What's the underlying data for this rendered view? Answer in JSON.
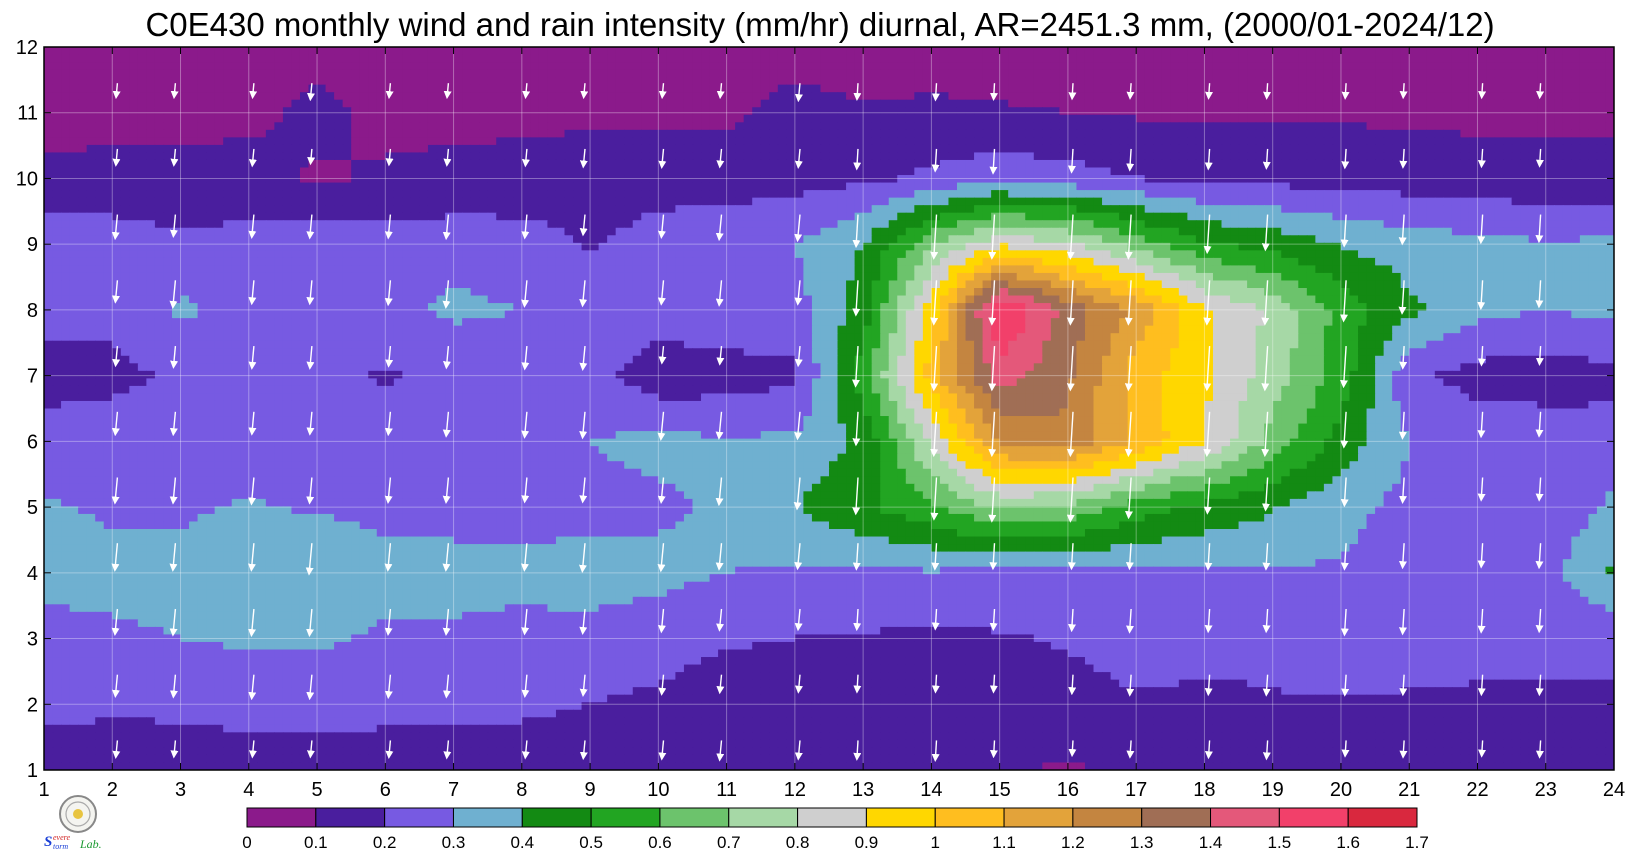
{
  "chart_data": {
    "type": "heatmap",
    "title": "C0E430 monthly wind and rain intensity (mm/hr) diurnal, AR=2451.3 mm, (2000/01-2024/12)",
    "xlabel": "",
    "ylabel": "",
    "x": [
      1,
      2,
      3,
      4,
      5,
      6,
      7,
      8,
      9,
      10,
      11,
      12,
      13,
      14,
      15,
      16,
      17,
      18,
      19,
      20,
      21,
      22,
      23,
      24
    ],
    "y": [
      1,
      2,
      3,
      4,
      5,
      6,
      7,
      8,
      9,
      10,
      11,
      12
    ],
    "xlim": [
      1,
      24
    ],
    "ylim": [
      1,
      12
    ],
    "grid": true,
    "colorbar": {
      "placement": "bottom",
      "levels": [
        0,
        0.1,
        0.2,
        0.3,
        0.4,
        0.5,
        0.6,
        0.7,
        0.8,
        0.9,
        1,
        1.1,
        1.2,
        1.3,
        1.4,
        1.5,
        1.6,
        1.7
      ],
      "labels": [
        "0",
        "0.1",
        "0.2",
        "0.3",
        "0.4",
        "0.5",
        "0.6",
        "0.7",
        "0.8",
        "0.9",
        "1",
        "1.1",
        "1.2",
        "1.3",
        "1.4",
        "1.5",
        "1.6",
        "1.7"
      ],
      "colors": [
        "#8b1a8b",
        "#4a1e9e",
        "#775ae2",
        "#6fb0d0",
        "#138a13",
        "#22a522",
        "#6cc36c",
        "#a6d8a6",
        "#cfcfcf",
        "#ffd700",
        "#ffbe1f",
        "#e3a33a",
        "#c48540",
        "#a06e55",
        "#e4587a",
        "#f2406a",
        "#d9283e"
      ]
    },
    "rows": [
      [
        0.15,
        0.13,
        0.12,
        0.12,
        0.12,
        0.13,
        0.14,
        0.14,
        0.15,
        0.16,
        0.18,
        0.16,
        0.16,
        0.18,
        0.11,
        0.09,
        0.12,
        0.13,
        0.15,
        0.1,
        0.12,
        0.1,
        0.12,
        0.14
      ],
      [
        0.23,
        0.22,
        0.23,
        0.26,
        0.26,
        0.24,
        0.23,
        0.22,
        0.2,
        0.18,
        0.15,
        0.14,
        0.13,
        0.13,
        0.13,
        0.16,
        0.19,
        0.18,
        0.19,
        0.19,
        0.18,
        0.18,
        0.18,
        0.19
      ],
      [
        0.27,
        0.29,
        0.3,
        0.31,
        0.31,
        0.29,
        0.29,
        0.28,
        0.27,
        0.24,
        0.21,
        0.2,
        0.19,
        0.18,
        0.19,
        0.21,
        0.24,
        0.23,
        0.23,
        0.29,
        0.27,
        0.24,
        0.23,
        0.22
      ],
      [
        0.33,
        0.32,
        0.32,
        0.32,
        0.39,
        0.32,
        0.32,
        0.32,
        0.34,
        0.33,
        0.3,
        0.29,
        0.29,
        0.29,
        0.28,
        0.28,
        0.28,
        0.29,
        0.29,
        0.29,
        0.26,
        0.25,
        0.26,
        0.42
      ],
      [
        0.31,
        0.29,
        0.29,
        0.31,
        0.29,
        0.28,
        0.28,
        0.27,
        0.27,
        0.28,
        0.32,
        0.4,
        0.48,
        0.58,
        0.72,
        0.68,
        0.55,
        0.47,
        0.41,
        0.33,
        0.27,
        0.23,
        0.23,
        0.32
      ],
      [
        0.22,
        0.24,
        0.24,
        0.23,
        0.23,
        0.24,
        0.27,
        0.29,
        0.3,
        0.33,
        0.31,
        0.32,
        0.42,
        0.82,
        1.22,
        1.28,
        1.08,
        0.9,
        0.66,
        0.46,
        0.3,
        0.27,
        0.26,
        0.24
      ],
      [
        0.18,
        0.18,
        0.21,
        0.23,
        0.23,
        0.19,
        0.22,
        0.24,
        0.25,
        0.13,
        0.15,
        0.18,
        0.55,
        1.05,
        1.45,
        1.32,
        1.05,
        0.92,
        0.75,
        0.56,
        0.22,
        0.16,
        0.15,
        0.17
      ],
      [
        0.22,
        0.22,
        0.32,
        0.25,
        0.25,
        0.27,
        0.32,
        0.3,
        0.29,
        0.26,
        0.28,
        0.26,
        0.45,
        0.95,
        1.62,
        1.36,
        1.18,
        0.92,
        0.78,
        0.56,
        0.42,
        0.33,
        0.3,
        0.33
      ],
      [
        0.3,
        0.26,
        0.22,
        0.24,
        0.25,
        0.25,
        0.26,
        0.25,
        0.19,
        0.24,
        0.28,
        0.3,
        0.4,
        0.68,
        0.88,
        0.82,
        0.66,
        0.51,
        0.46,
        0.39,
        0.35,
        0.33,
        0.31,
        0.32
      ],
      [
        0.11,
        0.12,
        0.12,
        0.13,
        0.09,
        0.11,
        0.12,
        0.13,
        0.15,
        0.16,
        0.15,
        0.16,
        0.18,
        0.22,
        0.26,
        0.24,
        0.2,
        0.18,
        0.17,
        0.16,
        0.15,
        0.14,
        0.13,
        0.13
      ],
      [
        0.08,
        0.08,
        0.08,
        0.08,
        0.12,
        0.08,
        0.08,
        0.08,
        0.08,
        0.08,
        0.08,
        0.14,
        0.11,
        0.12,
        0.11,
        0.1,
        0.09,
        0.09,
        0.09,
        0.09,
        0.08,
        0.08,
        0.08,
        0.08
      ],
      [
        0.09,
        0.09,
        0.08,
        0.07,
        0.08,
        0.07,
        0.06,
        0.06,
        0.06,
        0.09,
        0.06,
        0.05,
        0.05,
        0.05,
        0.05,
        0.05,
        0.05,
        0.05,
        0.05,
        0.05,
        0.05,
        0.05,
        0.05,
        0.05
      ]
    ]
  }
}
